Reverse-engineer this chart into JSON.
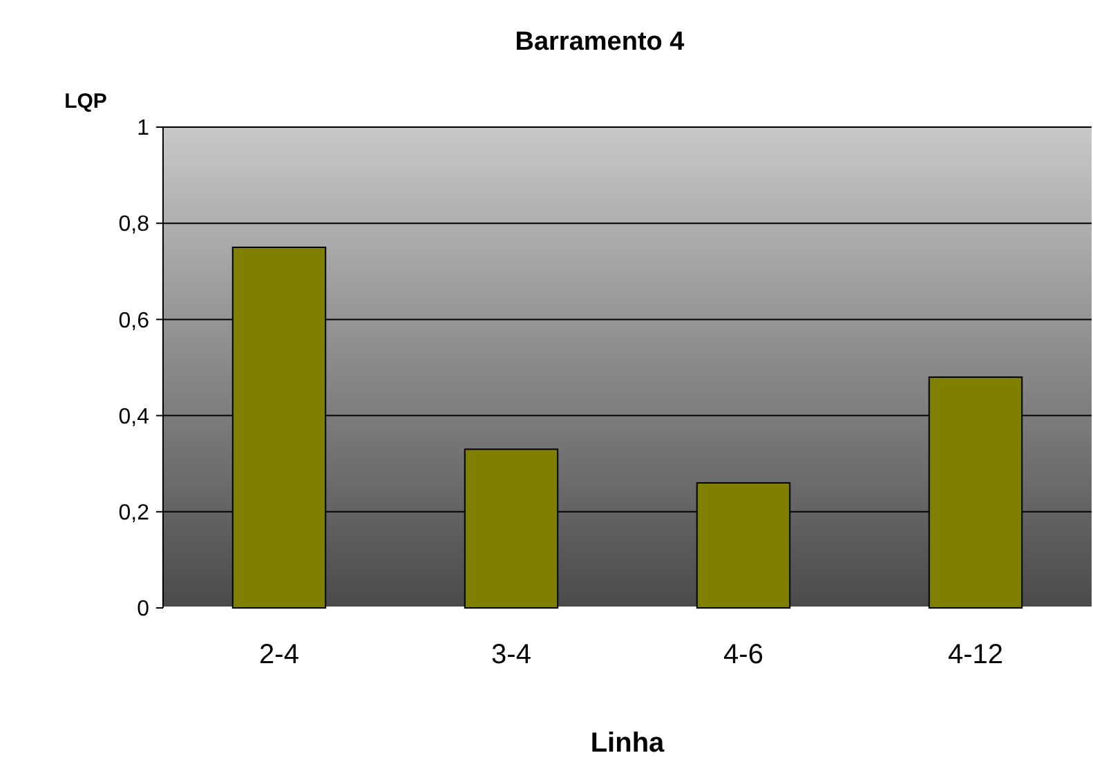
{
  "chart_data": {
    "type": "bar",
    "title": "Barramento 4",
    "ylabel": "LQP",
    "xlabel": "Linha",
    "categories": [
      "2-4",
      "3-4",
      "4-6",
      "4-12"
    ],
    "values": [
      0.75,
      0.33,
      0.26,
      0.48
    ],
    "color": "#808000",
    "ylim": [
      0,
      1
    ],
    "yticks": [
      0,
      {
        "value": 0.2,
        "label": "0,2"
      },
      {
        "value": 0.4,
        "label": "0,4"
      },
      {
        "value": 0.6,
        "label": "0,6"
      },
      {
        "value": 0.8,
        "label": "0,8"
      },
      1
    ],
    "grid": "y"
  }
}
